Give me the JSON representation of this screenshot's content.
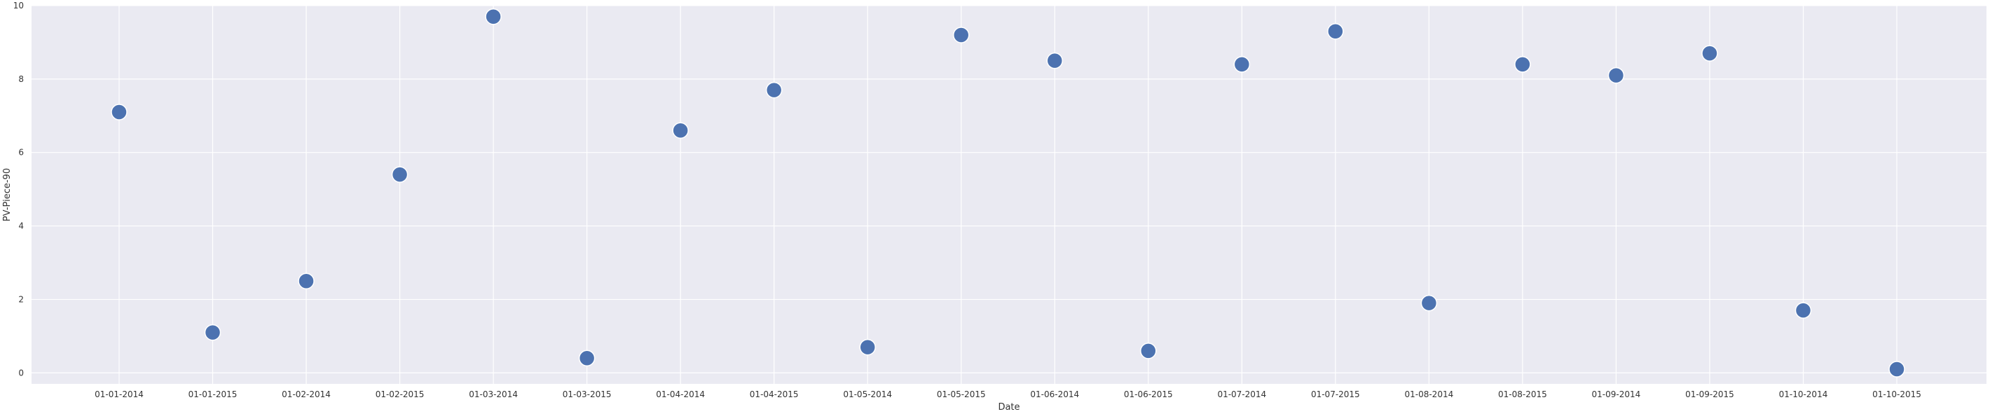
{
  "chart_data": {
    "type": "scatter",
    "title": "",
    "xlabel": "Date",
    "ylabel": "PV-Piece-90",
    "categories": [
      "01-01-2014",
      "01-01-2015",
      "01-02-2014",
      "01-02-2015",
      "01-03-2014",
      "01-03-2015",
      "01-04-2014",
      "01-04-2015",
      "01-05-2014",
      "01-05-2015",
      "01-06-2014",
      "01-06-2015",
      "01-07-2014",
      "01-07-2015",
      "01-08-2014",
      "01-08-2015",
      "01-09-2014",
      "01-09-2015",
      "01-10-2014",
      "01-10-2015"
    ],
    "values": [
      7.1,
      1.1,
      2.5,
      5.4,
      9.7,
      0.4,
      6.6,
      7.7,
      0.7,
      9.2,
      8.5,
      0.6,
      8.4,
      9.3,
      1.9,
      8.4,
      8.1,
      8.7,
      1.7,
      0.1
    ],
    "ylim": [
      -0.3,
      10.0
    ],
    "yticks": [
      0,
      2,
      4,
      6,
      8,
      10
    ],
    "grid": true,
    "colors": {
      "background": "#eaeaf2",
      "grid": "#ffffff",
      "marker": "#4c72b0",
      "marker_edge": "#ffffff"
    }
  }
}
